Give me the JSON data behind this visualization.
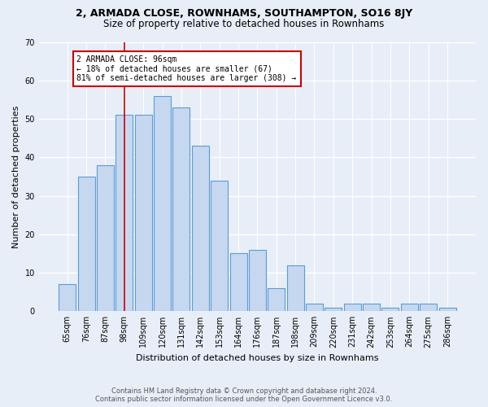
{
  "title1": "2, ARMADA CLOSE, ROWNHAMS, SOUTHAMPTON, SO16 8JY",
  "title2": "Size of property relative to detached houses in Rownhams",
  "xlabel": "Distribution of detached houses by size in Rownhams",
  "ylabel": "Number of detached properties",
  "categories": [
    "65sqm",
    "76sqm",
    "87sqm",
    "98sqm",
    "109sqm",
    "120sqm",
    "131sqm",
    "142sqm",
    "153sqm",
    "164sqm",
    "176sqm",
    "187sqm",
    "198sqm",
    "209sqm",
    "220sqm",
    "231sqm",
    "242sqm",
    "253sqm",
    "264sqm",
    "275sqm",
    "286sqm"
  ],
  "values": [
    7,
    35,
    38,
    51,
    51,
    56,
    53,
    43,
    34,
    15,
    16,
    6,
    12,
    2,
    1,
    2,
    2,
    1,
    2,
    2,
    1
  ],
  "bar_color": "#c5d8f0",
  "bar_edge_color": "#5b9bd5",
  "background_color": "#e8eef7",
  "grid_color": "#ffffff",
  "vline_x": 3.0,
  "annotation_text_line1": "2 ARMADA CLOSE: 96sqm",
  "annotation_text_line2": "← 18% of detached houses are smaller (67)",
  "annotation_text_line3": "81% of semi-detached houses are larger (308) →",
  "annotation_box_color": "#ffffff",
  "annotation_box_edge_color": "#cc0000",
  "vline_color": "#cc0000",
  "footer": "Contains HM Land Registry data © Crown copyright and database right 2024.\nContains public sector information licensed under the Open Government Licence v3.0.",
  "ylim": [
    0,
    70
  ],
  "yticks": [
    0,
    10,
    20,
    30,
    40,
    50,
    60,
    70
  ],
  "title1_fontsize": 9,
  "title2_fontsize": 8.5,
  "xlabel_fontsize": 8,
  "ylabel_fontsize": 8,
  "tick_fontsize": 7,
  "footer_fontsize": 6
}
